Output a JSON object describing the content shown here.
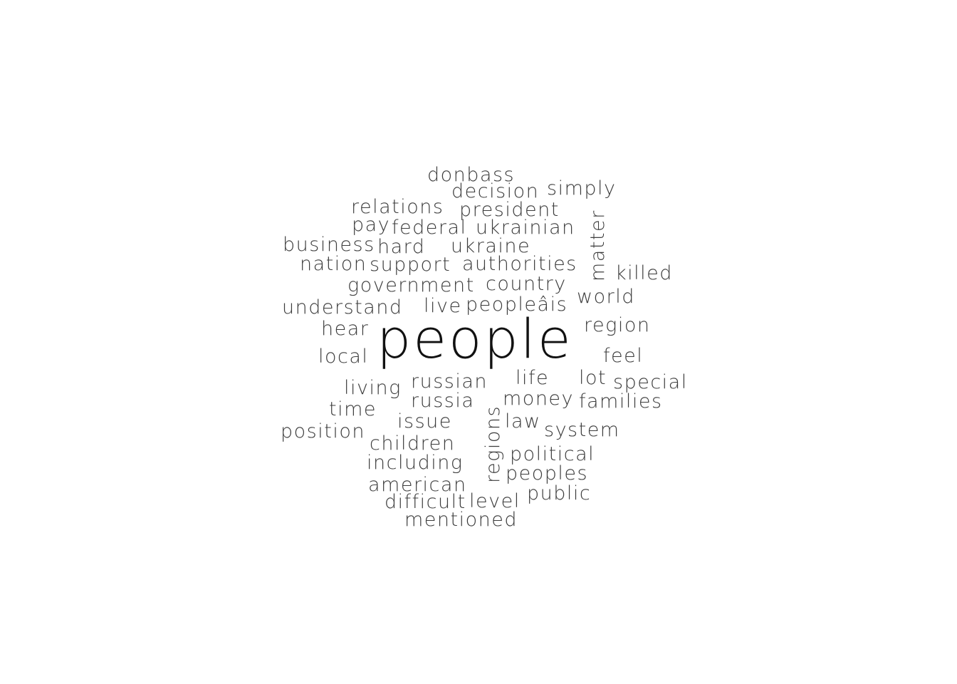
{
  "word_cloud": {
    "words": [
      {
        "id": "people",
        "text": "people"
      },
      {
        "id": "donbass",
        "text": "donbass"
      },
      {
        "id": "decision",
        "text": "decision"
      },
      {
        "id": "simply",
        "text": "simply"
      },
      {
        "id": "relations",
        "text": "relations"
      },
      {
        "id": "president",
        "text": "president"
      },
      {
        "id": "pay",
        "text": "pay"
      },
      {
        "id": "federal",
        "text": "federal"
      },
      {
        "id": "ukrainian",
        "text": "ukrainian"
      },
      {
        "id": "matter",
        "text": "matter"
      },
      {
        "id": "business",
        "text": "business"
      },
      {
        "id": "hard",
        "text": "hard"
      },
      {
        "id": "ukraine",
        "text": "ukraine"
      },
      {
        "id": "nation",
        "text": "nation"
      },
      {
        "id": "support",
        "text": "support"
      },
      {
        "id": "authorities",
        "text": "authorities"
      },
      {
        "id": "killed",
        "text": "killed"
      },
      {
        "id": "government",
        "text": "government"
      },
      {
        "id": "country",
        "text": "country"
      },
      {
        "id": "world",
        "text": "world"
      },
      {
        "id": "understand",
        "text": "understand"
      },
      {
        "id": "live",
        "text": "live"
      },
      {
        "id": "peoples_encoded",
        "text": "peopleâis"
      },
      {
        "id": "hear",
        "text": "hear"
      },
      {
        "id": "region",
        "text": "region"
      },
      {
        "id": "local",
        "text": "local"
      },
      {
        "id": "feel",
        "text": "feel"
      },
      {
        "id": "living",
        "text": "living"
      },
      {
        "id": "russian",
        "text": "russian"
      },
      {
        "id": "life",
        "text": "life"
      },
      {
        "id": "lot",
        "text": "lot"
      },
      {
        "id": "special",
        "text": "special"
      },
      {
        "id": "time",
        "text": "time"
      },
      {
        "id": "russia",
        "text": "russia"
      },
      {
        "id": "money",
        "text": "money"
      },
      {
        "id": "families",
        "text": "families"
      },
      {
        "id": "position",
        "text": "position"
      },
      {
        "id": "issue",
        "text": "issue"
      },
      {
        "id": "regions",
        "text": "regions"
      },
      {
        "id": "law",
        "text": "law"
      },
      {
        "id": "system",
        "text": "system"
      },
      {
        "id": "children",
        "text": "children"
      },
      {
        "id": "political",
        "text": "political"
      },
      {
        "id": "including",
        "text": "including"
      },
      {
        "id": "peoples",
        "text": "peoples"
      },
      {
        "id": "american",
        "text": "american"
      },
      {
        "id": "public",
        "text": "public"
      },
      {
        "id": "difficult",
        "text": "difficult"
      },
      {
        "id": "level",
        "text": "level"
      },
      {
        "id": "mentioned",
        "text": "mentioned"
      }
    ]
  }
}
